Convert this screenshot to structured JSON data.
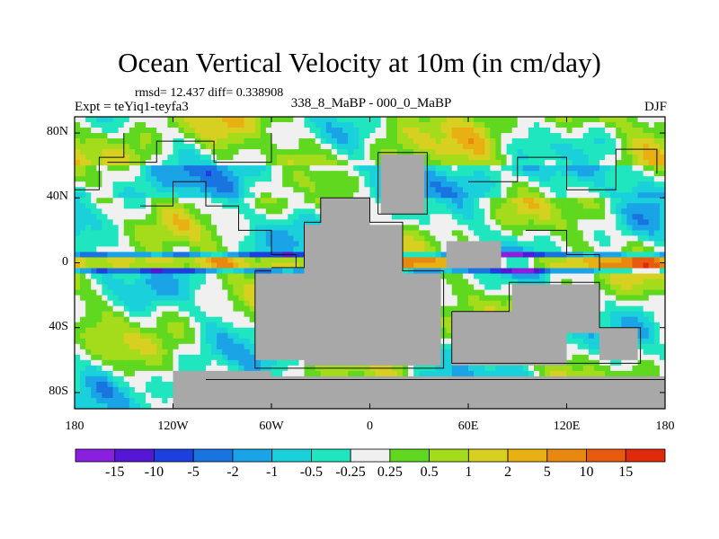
{
  "chart_data": {
    "type": "heatmap",
    "title": "Ocean Vertical Velocity at 10m (in cm/day)",
    "stats": "rmsd= 12.437 diff= 0.338908",
    "left_string": "Expt = teYiq1-teyfa3",
    "center_string": "338_8_MaBP - 000_0_MaBP",
    "right_string": "DJF",
    "x_ticks": [
      "180",
      "120W",
      "60W",
      "0",
      "60E",
      "120E",
      "180"
    ],
    "x_tick_values": [
      -180,
      -120,
      -60,
      0,
      60,
      120,
      180
    ],
    "y_ticks": [
      "80N",
      "40N",
      "0",
      "40S",
      "80S"
    ],
    "y_tick_values": [
      80,
      40,
      0,
      -40,
      -80
    ],
    "xlim": [
      -180,
      180
    ],
    "ylim": [
      -90,
      90
    ],
    "colorbar": {
      "levels": [
        "-15",
        "-10",
        "-5",
        "-2",
        "-1",
        "-0.5",
        "-0.25",
        "0.25",
        "0.5",
        "1",
        "2",
        "5",
        "10",
        "15"
      ],
      "colors": [
        "#8a1fe0",
        "#5516d6",
        "#1d3fe0",
        "#1a74e0",
        "#1aa3e6",
        "#1ad0da",
        "#1fe6bf",
        "#f0f0f0",
        "#5fd81f",
        "#a4dc1c",
        "#d8d020",
        "#e8b012",
        "#e8880f",
        "#e85a10",
        "#e02a0a"
      ]
    },
    "land_color": "#a8a8a8"
  }
}
